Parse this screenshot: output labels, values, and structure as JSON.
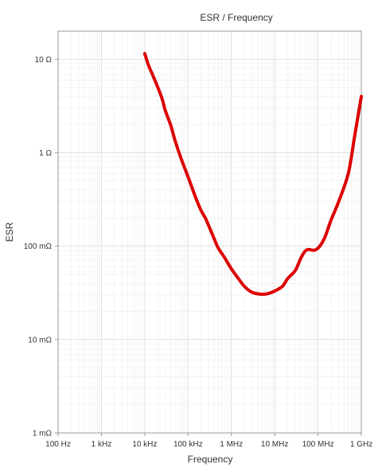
{
  "chart_data": {
    "type": "line",
    "title": "ESR / Frequency",
    "xlabel": "Frequency",
    "ylabel": "ESR",
    "xscale": "log",
    "yscale": "log",
    "xlim": [
      100,
      1000000000
    ],
    "ylim": [
      0.001,
      20
    ],
    "grid": true,
    "x_ticks": [
      {
        "value": 100,
        "label": "100 Hz"
      },
      {
        "value": 1000,
        "label": "1 kHz"
      },
      {
        "value": 10000,
        "label": "10 kHz"
      },
      {
        "value": 100000,
        "label": "100 kHz"
      },
      {
        "value": 1000000,
        "label": "1 MHz"
      },
      {
        "value": 10000000,
        "label": "10 MHz"
      },
      {
        "value": 100000000,
        "label": "100 MHz"
      },
      {
        "value": 1000000000,
        "label": "1 GHz"
      }
    ],
    "y_ticks": [
      {
        "value": 0.001,
        "label": "1 mΩ"
      },
      {
        "value": 0.01,
        "label": "10 mΩ"
      },
      {
        "value": 0.1,
        "label": "100 mΩ"
      },
      {
        "value": 1,
        "label": "1 Ω"
      },
      {
        "value": 10,
        "label": "10 Ω"
      }
    ],
    "series": [
      {
        "color": "#dd0000",
        "x": [
          10000,
          12000,
          15000,
          20000,
          25000,
          30000,
          40000,
          50000,
          70000,
          100000,
          150000,
          200000,
          250000,
          300000,
          400000,
          500000,
          700000,
          1000000,
          1500000,
          2000000,
          3000000,
          5000000,
          7000000,
          10000000,
          15000000,
          20000000,
          30000000,
          40000000,
          50000000,
          60000000,
          70000000,
          80000000,
          90000000,
          100000000,
          110000000,
          120000000,
          130000000,
          150000000,
          200000000,
          300000000,
          500000000,
          700000000,
          1000000000
        ],
        "y": [
          11.5,
          8.8,
          6.9,
          5.0,
          3.8,
          2.8,
          1.95,
          1.35,
          0.85,
          0.55,
          0.33,
          0.24,
          0.2,
          0.165,
          0.12,
          0.095,
          0.075,
          0.057,
          0.044,
          0.037,
          0.032,
          0.0305,
          0.031,
          0.033,
          0.037,
          0.045,
          0.055,
          0.074,
          0.088,
          0.092,
          0.091,
          0.09,
          0.092,
          0.095,
          0.1,
          0.106,
          0.113,
          0.13,
          0.19,
          0.3,
          0.6,
          1.5,
          4.0
        ]
      }
    ]
  }
}
